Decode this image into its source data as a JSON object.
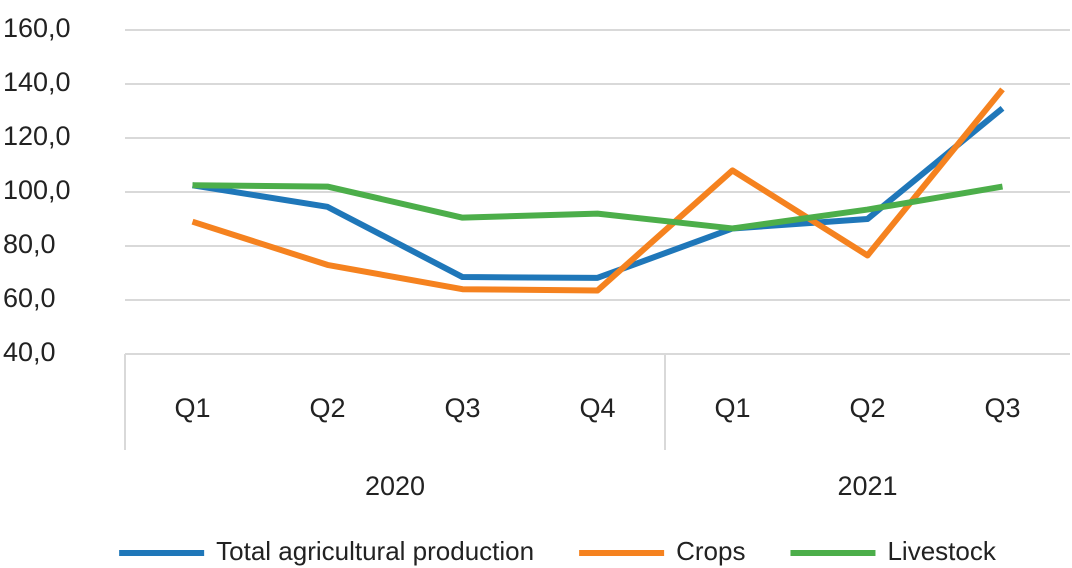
{
  "chart_data": {
    "type": "line",
    "category_groups": [
      {
        "name": "2020",
        "categories": [
          "Q1",
          "Q2",
          "Q3",
          "Q4"
        ]
      },
      {
        "name": "2021",
        "categories": [
          "Q1",
          "Q2",
          "Q3"
        ]
      }
    ],
    "series": [
      {
        "name": "Total agricultural production",
        "color": "#1f77b9",
        "values": [
          102.5,
          94.5,
          68.5,
          68.2,
          86.5,
          90,
          131
        ]
      },
      {
        "name": "Crops",
        "color": "#f5821f",
        "values": [
          89,
          73,
          64,
          63.5,
          108,
          76.5,
          138
        ]
      },
      {
        "name": "Livestock",
        "color": "#4cae4a",
        "values": [
          102.5,
          102,
          90.5,
          92,
          86.5,
          93.5,
          102
        ]
      }
    ],
    "ylim": [
      40,
      160
    ],
    "yticks": [
      {
        "value": 40,
        "label": "40,0"
      },
      {
        "value": 60,
        "label": "60,0"
      },
      {
        "value": 80,
        "label": "80,0"
      },
      {
        "value": 100,
        "label": "100,0"
      },
      {
        "value": 120,
        "label": "120,0"
      },
      {
        "value": 140,
        "label": "140,0"
      },
      {
        "value": 160,
        "label": "160,0"
      }
    ],
    "grid": true,
    "legend": "bottom"
  }
}
